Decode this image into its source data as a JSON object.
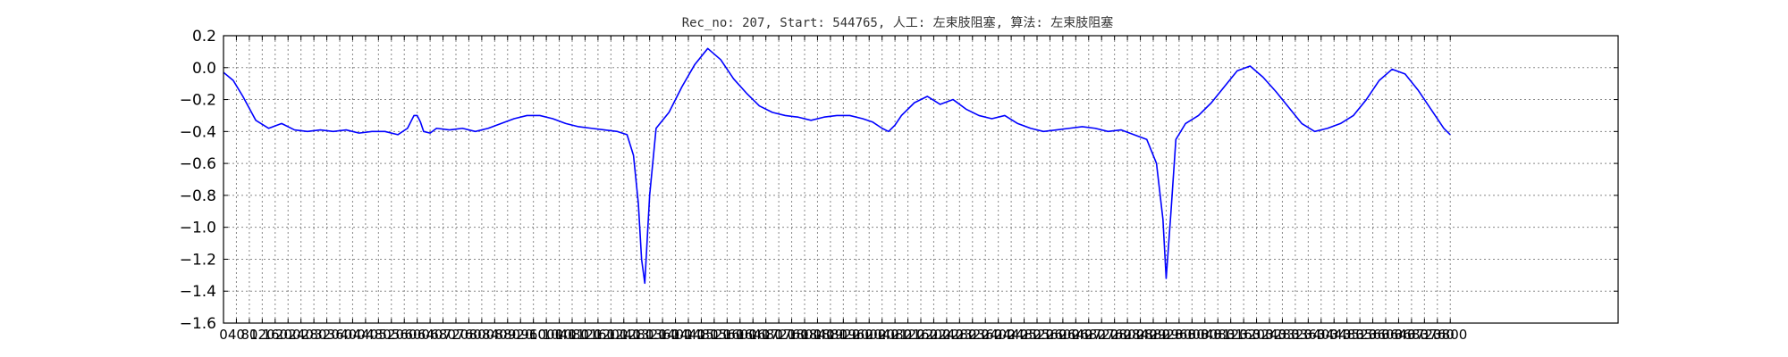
{
  "chart_data": {
    "type": "line",
    "title": "Rec_no: 207, Start: 544765, 人工: 左束肢阻塞, 算法: 左束肢阻塞",
    "xlabel": "",
    "ylabel": "",
    "xlim": [
      0,
      4320
    ],
    "ylim": [
      -1.6,
      0.2
    ],
    "grid": true,
    "yticks": [
      0.2,
      0.0,
      -0.2,
      -0.4,
      -0.6,
      -0.8,
      -1.0,
      -1.2,
      -1.4,
      -1.6
    ],
    "ytick_labels": [
      "0.2",
      "0.0",
      "−0.2",
      "−0.4",
      "−0.6",
      "−0.8",
      "−1.0",
      "−1.2",
      "−1.4",
      "−1.6"
    ],
    "xtick_step": 40,
    "xtick_max": 3800,
    "colors": {
      "series": "#0000ff",
      "highlight": "#ff0000"
    },
    "series": [
      {
        "color": "#0000ff",
        "x": [
          0,
          30,
          60,
          100,
          140,
          180,
          220,
          260,
          300,
          340,
          380,
          420,
          460,
          500,
          540,
          570,
          590,
          600,
          610,
          620,
          640,
          660,
          700,
          740,
          780,
          820,
          860,
          900,
          940,
          980,
          1020,
          1060,
          1100,
          1140,
          1180,
          1220,
          1250,
          1270,
          1285,
          1295,
          1305,
          1320,
          1340,
          1380,
          1420,
          1460,
          1500,
          1540,
          1580,
          1620,
          1660,
          1700,
          1740,
          1780,
          1820,
          1860,
          1900,
          1940,
          1980,
          2010,
          2040,
          2060,
          2080,
          2100,
          2140,
          2180,
          2220,
          2260,
          2300,
          2340,
          2380,
          2420,
          2460,
          2500,
          2540,
          2580,
          2620,
          2660,
          2700,
          2740,
          2780,
          2820,
          2860,
          2890,
          2910,
          2920,
          2935,
          2950,
          2980,
          3020,
          3060,
          3100,
          3140,
          3180,
          3220,
          3260,
          3300,
          3340,
          3380,
          3420,
          3460,
          3500,
          3540,
          3580,
          3620,
          3660,
          3700,
          3740,
          3780,
          3800
        ],
        "y": [
          -0.03,
          -0.08,
          -0.18,
          -0.33,
          -0.38,
          -0.35,
          -0.39,
          -0.4,
          -0.39,
          -0.4,
          -0.39,
          -0.41,
          -0.4,
          -0.4,
          -0.42,
          -0.38,
          -0.3,
          -0.3,
          -0.34,
          -0.4,
          -0.41,
          -0.38,
          -0.39,
          -0.38,
          -0.4,
          -0.38,
          -0.35,
          -0.32,
          -0.3,
          -0.3,
          -0.32,
          -0.35,
          -0.37,
          -0.38,
          -0.39,
          -0.4,
          -0.42,
          -0.55,
          -0.85,
          -1.2,
          -1.35,
          -0.8,
          -0.38,
          -0.28,
          -0.12,
          0.02,
          0.12,
          0.05,
          -0.07,
          -0.16,
          -0.24,
          -0.28,
          -0.3,
          -0.31,
          -0.33,
          -0.31,
          -0.3,
          -0.3,
          -0.32,
          -0.34,
          -0.38,
          -0.4,
          -0.36,
          -0.3,
          -0.22,
          -0.18,
          -0.23,
          -0.2,
          -0.26,
          -0.3,
          -0.32,
          -0.3,
          -0.35,
          -0.38,
          -0.4,
          -0.39,
          -0.38,
          -0.37,
          -0.38,
          -0.4,
          -0.39,
          -0.42,
          -0.45,
          -0.6,
          -0.95,
          -1.32,
          -0.9,
          -0.45,
          -0.35,
          -0.3,
          -0.22,
          -0.12,
          -0.02,
          0.01,
          -0.06,
          -0.15,
          -0.25,
          -0.35,
          -0.4,
          -0.38,
          -0.35,
          -0.3,
          -0.2,
          -0.08,
          -0.01,
          -0.04,
          -0.14,
          -0.26,
          -0.38,
          -0.42
        ]
      }
    ]
  }
}
